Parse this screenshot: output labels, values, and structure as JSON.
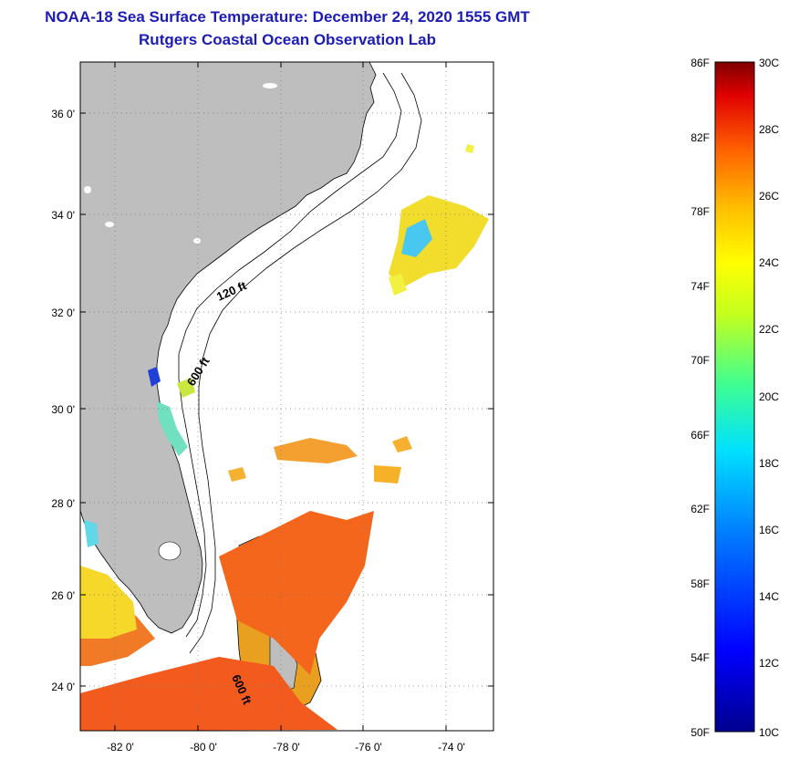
{
  "header": {
    "title": "NOAA-18 Sea Surface Temperature:  December 24, 2020 1555 GMT",
    "subtitle": "Rutgers Coastal Ocean Observation Lab"
  },
  "map": {
    "lat_ticks": [
      "36 0'",
      "34 0'",
      "32 0'",
      "30 0'",
      "28 0'",
      "26 0'",
      "24 0'"
    ],
    "lon_ticks": [
      "-82 0'",
      "-80 0'",
      "-78 0'",
      "-76 0'",
      "-74 0'"
    ],
    "contour_labels": [
      "120 ft",
      "600 ft",
      "600 ft"
    ],
    "colors": {
      "land": "#bebebe",
      "ocean_nodata": "#ffffff",
      "warm": "#f25a1e",
      "cool": "#1a3ad0"
    }
  },
  "colorbar": {
    "fahrenheit": [
      "86F",
      "82F",
      "78F",
      "74F",
      "70F",
      "66F",
      "62F",
      "58F",
      "54F",
      "50F"
    ],
    "celsius": [
      "30C",
      "28C",
      "26C",
      "24C",
      "22C",
      "20C",
      "18C",
      "16C",
      "14C",
      "12C",
      "10C"
    ]
  }
}
